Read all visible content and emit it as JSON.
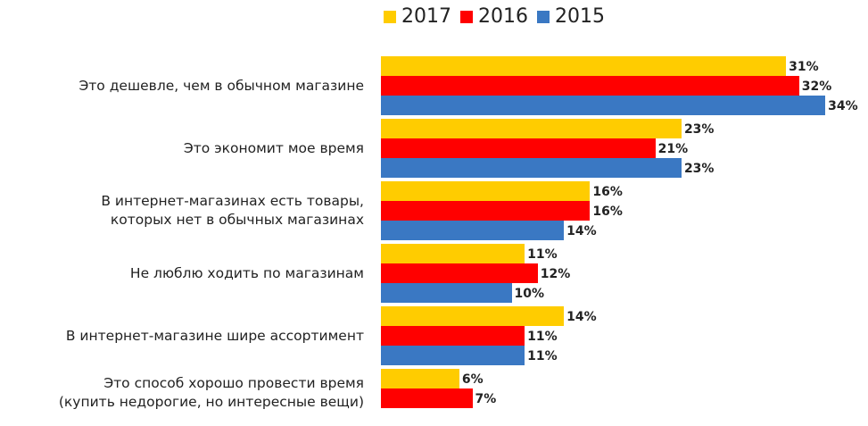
{
  "chart_data": {
    "type": "bar",
    "orientation": "horizontal",
    "title": "",
    "xlabel": "",
    "ylabel": "",
    "xlim": [
      0,
      34
    ],
    "grid": false,
    "legend_position": "top",
    "value_suffix": "%",
    "categories": [
      "Это дешевле, чем в обычном магазине",
      "Это экономит мое время",
      "В интернет-магазинах есть товары,\nкоторых нет в обычных магазинах",
      "Не люблю ходить по магазинам",
      "В интернет-магазине шире ассортимент",
      "Это способ хорошо провести время\n(купить недорогие, но интересные вещи)"
    ],
    "series": [
      {
        "name": "2017",
        "color": "#FFCC00",
        "values": [
          31,
          23,
          16,
          11,
          14,
          6
        ],
        "labels": [
          "31%",
          "23%",
          "16%",
          "11%",
          "14%",
          "6%"
        ]
      },
      {
        "name": "2016",
        "color": "#FF0000",
        "values": [
          32,
          21,
          16,
          12,
          11,
          7
        ],
        "labels": [
          "32%",
          "21%",
          "16%",
          "12%",
          "11%",
          "7%"
        ]
      },
      {
        "name": "2015",
        "color": "#3A78C3",
        "values": [
          34,
          23,
          14,
          10,
          11,
          null
        ],
        "labels": [
          "34%",
          "23%",
          "14%",
          "10%",
          "11%",
          null
        ]
      }
    ]
  }
}
